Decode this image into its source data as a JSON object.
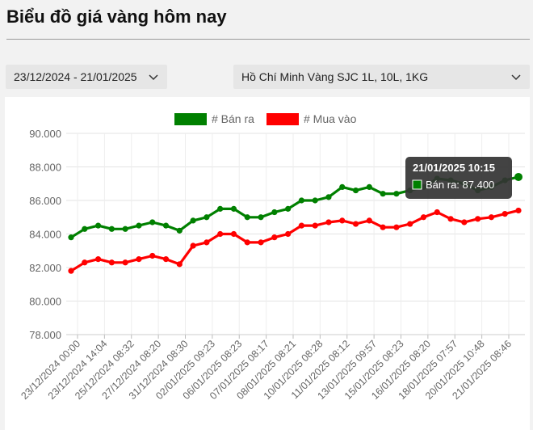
{
  "page": {
    "title": "Biểu đồ giá vàng hôm nay"
  },
  "filters": {
    "date_range": "23/12/2024 - 21/01/2025",
    "location": "Hồ Chí Minh Vàng SJC 1L, 10L, 1KG"
  },
  "colors": {
    "sell": "#008000",
    "buy": "#ff0000",
    "tooltip_bg": "#333333"
  },
  "chart_data": {
    "type": "line",
    "legend_position": "top",
    "grid": true,
    "ylim": [
      78000,
      90000
    ],
    "y_ticks": [
      "78.000",
      "80.000",
      "82.000",
      "84.000",
      "86.000",
      "88.000",
      "90.000"
    ],
    "y_tick_values": [
      78000,
      80000,
      82000,
      84000,
      86000,
      88000,
      90000
    ],
    "x_tick_labels": [
      "23/12/2024 00:00",
      "23/12/2024 14:04",
      "25/12/2024 08:32",
      "27/12/2024 08:20",
      "31/12/2024 08:30",
      "02/01/2025 09:23",
      "06/01/2025 08:23",
      "07/01/2025 08:17",
      "08/01/2025 08:21",
      "10/01/2025 08:28",
      "11/01/2025 08:12",
      "13/01/2025 09:57",
      "15/01/2025 08:23",
      "16/01/2025 08:20",
      "18/01/2025 07:57",
      "20/01/2025 10:48",
      "21/01/2025 08:46"
    ],
    "series": [
      {
        "name": "Bán ra",
        "color": "#008000",
        "values": [
          83800,
          84300,
          84500,
          84300,
          84300,
          84500,
          84700,
          84500,
          84200,
          84800,
          85000,
          85500,
          85500,
          85000,
          85000,
          85300,
          85500,
          86000,
          86000,
          86200,
          86800,
          86600,
          86800,
          86400,
          86400,
          86600,
          86800,
          87300,
          87200,
          87000,
          86600,
          86800,
          87200,
          87400
        ]
      },
      {
        "name": "Mua vào",
        "color": "#ff0000",
        "values": [
          81800,
          82300,
          82500,
          82300,
          82300,
          82500,
          82700,
          82500,
          82200,
          83300,
          83500,
          84000,
          84000,
          83500,
          83500,
          83800,
          84000,
          84500,
          84500,
          84700,
          84800,
          84600,
          84800,
          84400,
          84400,
          84600,
          85000,
          85300,
          84900,
          84700,
          84900,
          85000,
          85200,
          85400
        ]
      }
    ],
    "tooltip": {
      "title": "21/01/2025 10:15",
      "label": "Bán ra: 87.400"
    }
  }
}
